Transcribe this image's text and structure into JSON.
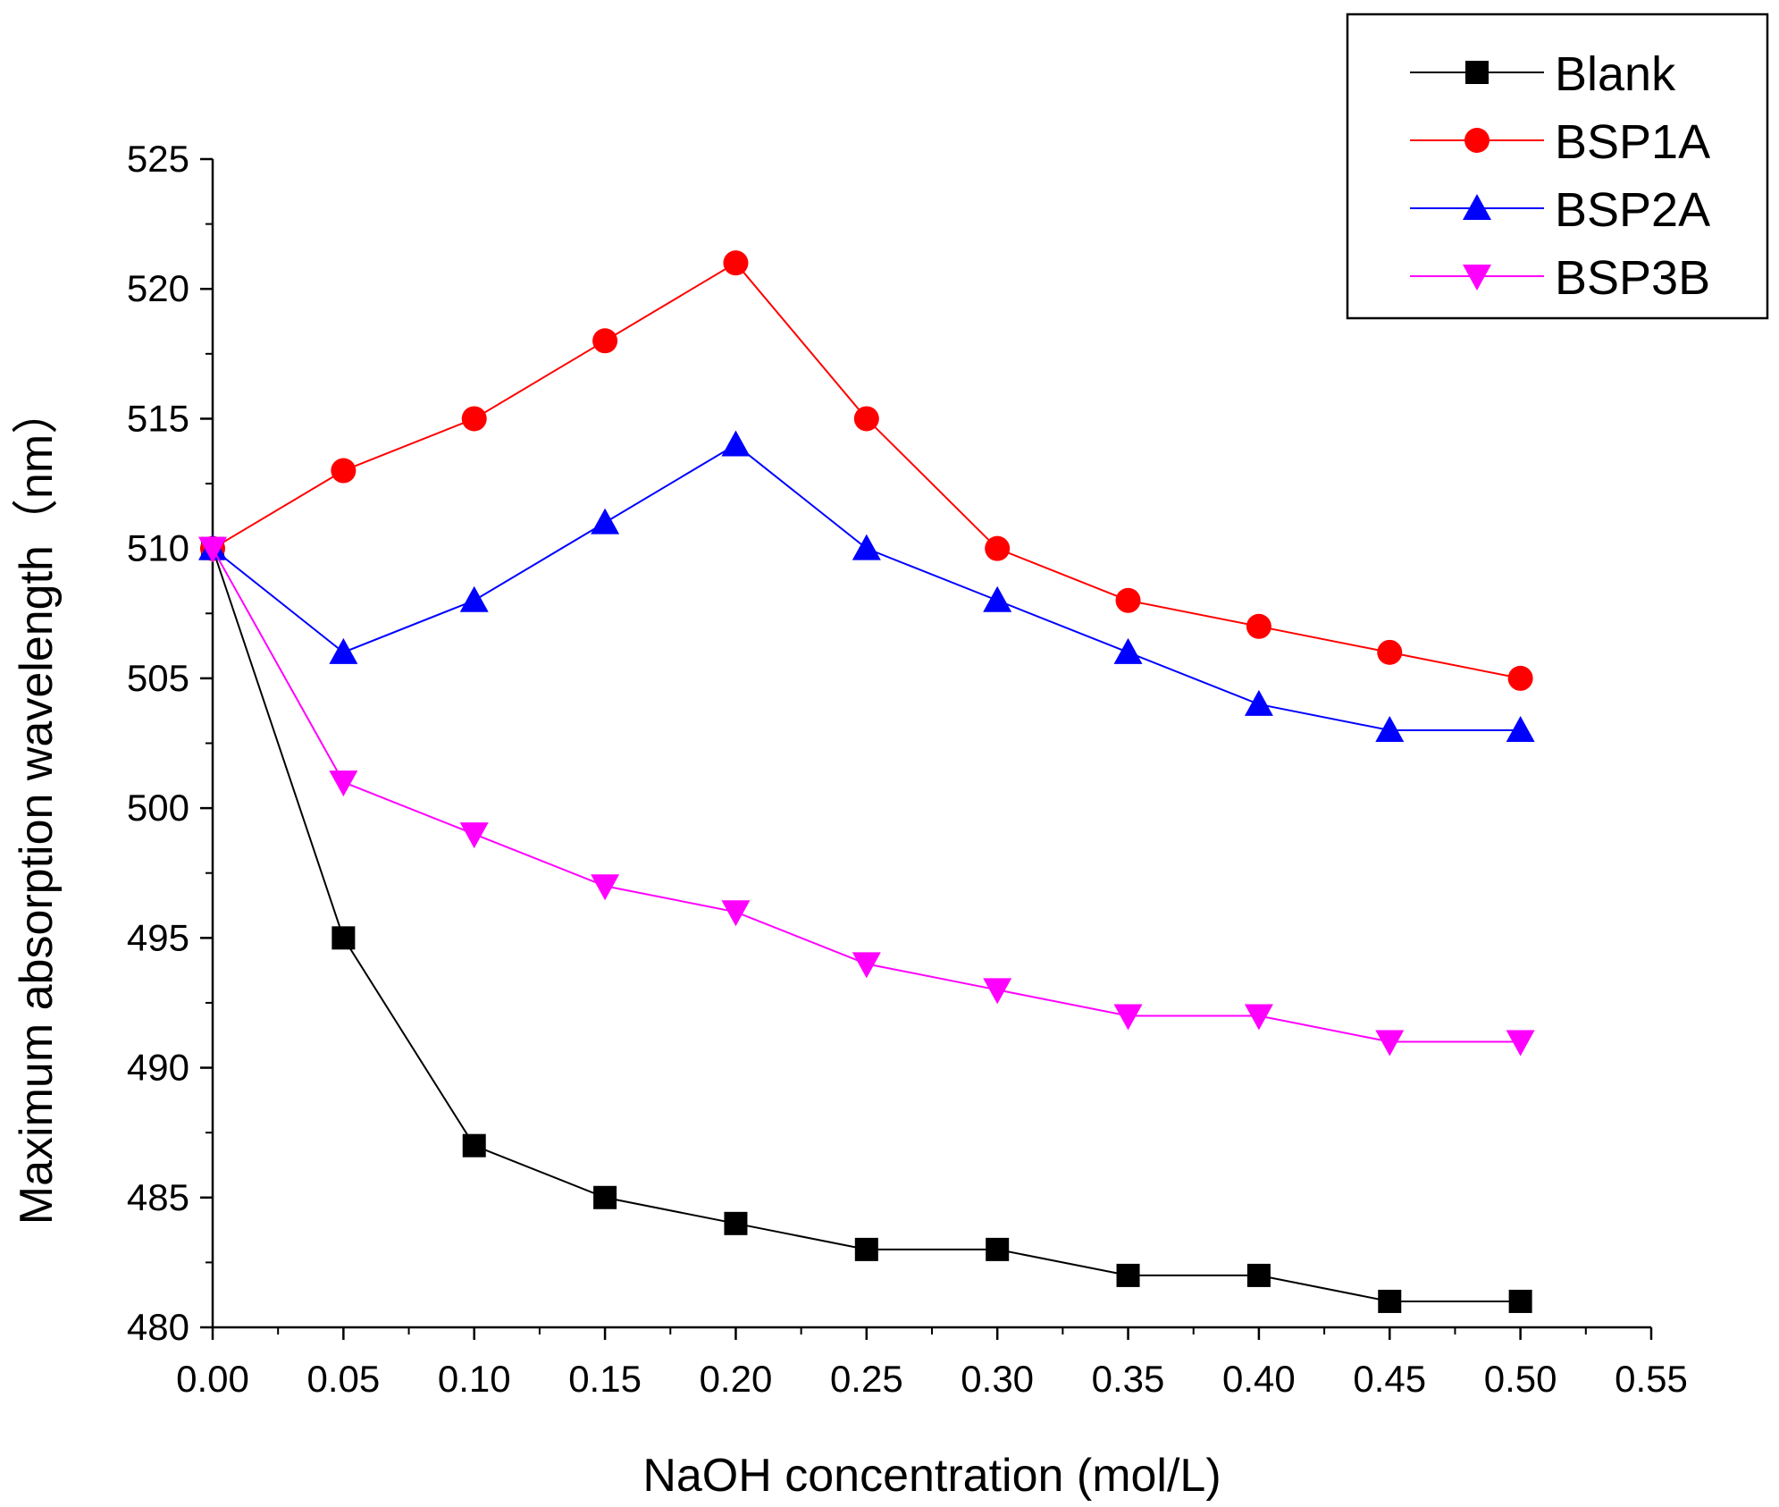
{
  "chart_data": {
    "type": "line",
    "title": "",
    "xlabel": "NaOH concentration (mol/L)",
    "ylabel": "Maximum absorption wavelength（nm）",
    "xlim": [
      0.0,
      0.55
    ],
    "ylim": [
      480,
      525
    ],
    "x_ticks": [
      "0.00",
      "0.05",
      "0.10",
      "0.15",
      "0.20",
      "0.25",
      "0.30",
      "0.35",
      "0.40",
      "0.45",
      "0.50",
      "0.55"
    ],
    "y_ticks": [
      "480",
      "485",
      "490",
      "495",
      "500",
      "505",
      "510",
      "515",
      "520",
      "525"
    ],
    "grid": false,
    "legend_position": "top-right",
    "x": [
      0.0,
      0.05,
      0.1,
      0.15,
      0.2,
      0.25,
      0.3,
      0.35,
      0.4,
      0.45,
      0.5
    ],
    "series": [
      {
        "name": "Blank",
        "color": "#000000",
        "marker": "square",
        "values": [
          510,
          495,
          487,
          485,
          484,
          483,
          483,
          482,
          482,
          481,
          481
        ]
      },
      {
        "name": "BSP1A",
        "color": "#ff0000",
        "marker": "circle",
        "values": [
          510,
          513,
          515,
          518,
          521,
          515,
          510,
          508,
          507,
          506,
          505
        ]
      },
      {
        "name": "BSP2A",
        "color": "#0000ff",
        "marker": "triangle-up",
        "values": [
          510,
          506,
          508,
          511,
          514,
          510,
          508,
          506,
          504,
          503,
          503
        ]
      },
      {
        "name": "BSP3B",
        "color": "#ff00ff",
        "marker": "triangle-down",
        "values": [
          510,
          501,
          499,
          497,
          496,
          494,
          493,
          492,
          492,
          491,
          491
        ]
      }
    ]
  }
}
